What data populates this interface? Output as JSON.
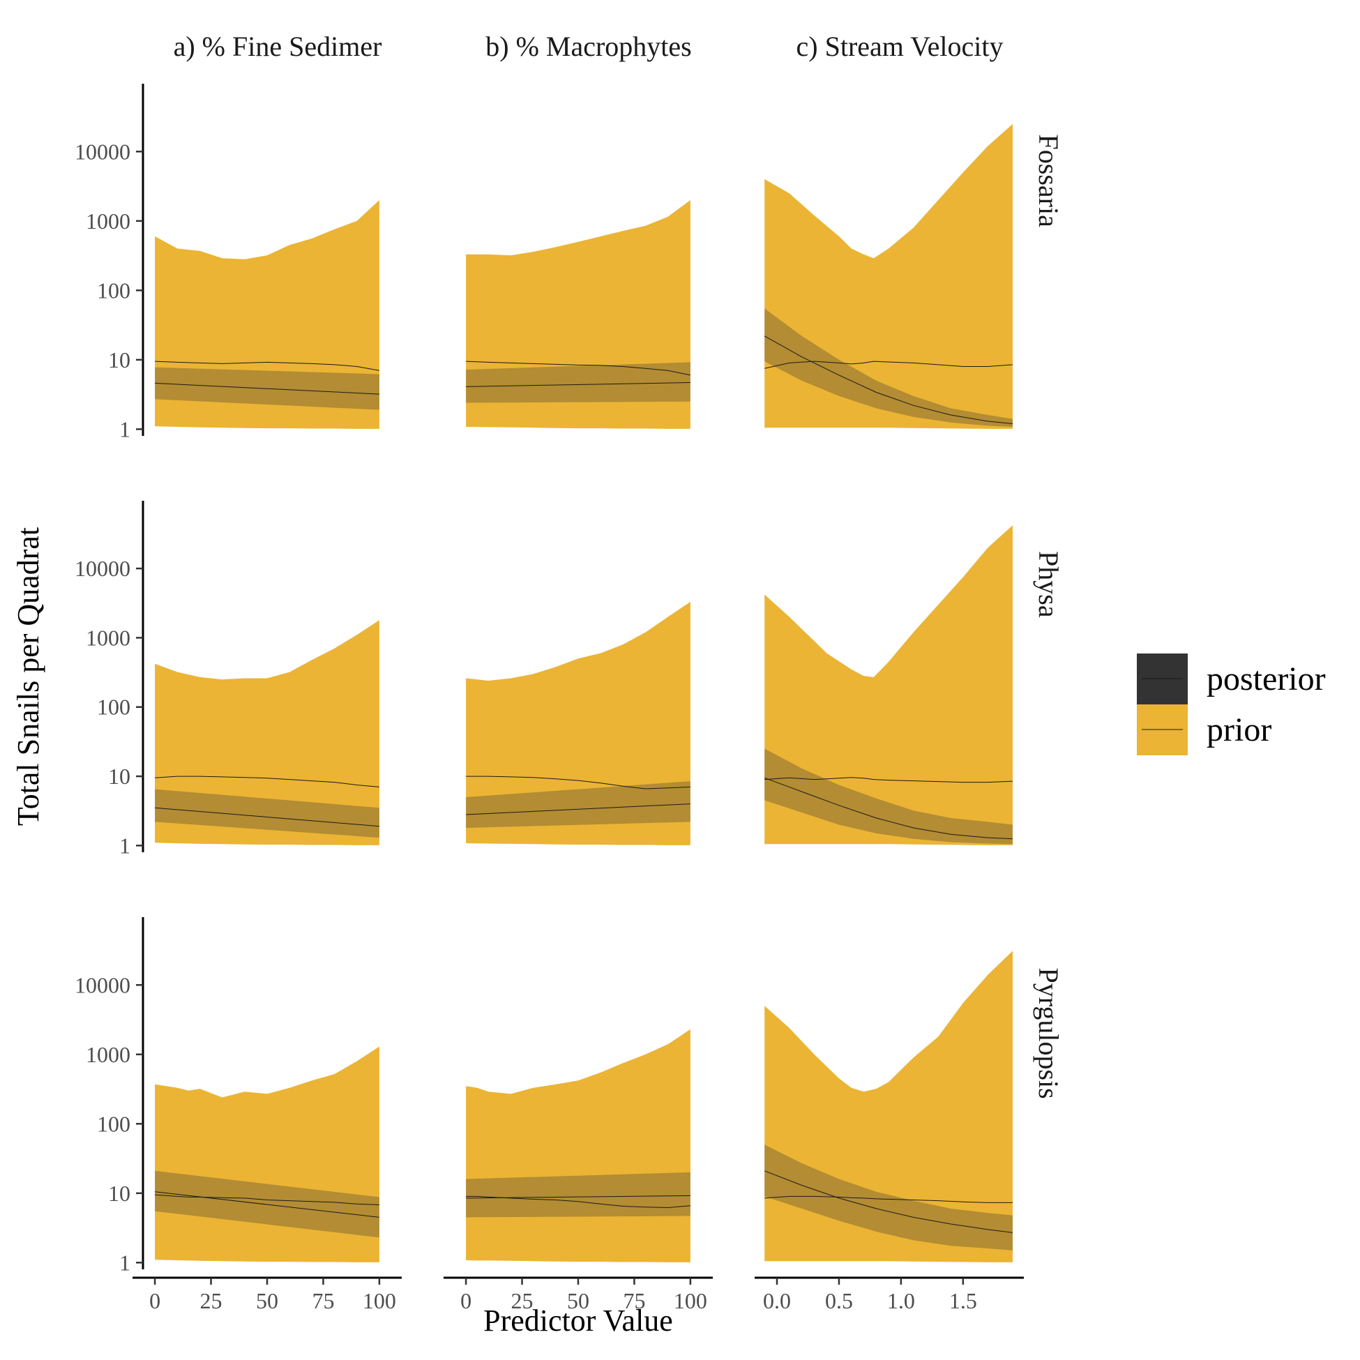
{
  "chart_data": {
    "type": "area",
    "y_scale": "log10",
    "xlabel": "Predictor Value",
    "ylabel": "Total Snails per Quadrat",
    "ylim": [
      1,
      50000
    ],
    "y_ticks": [
      1,
      10,
      100,
      1000,
      10000
    ],
    "y_tick_labels": [
      "1",
      "10",
      "100",
      "1000",
      "10000"
    ],
    "grid": false,
    "legend_position": "right",
    "columns": [
      {
        "label": "a) % Fine Sedimer",
        "xlim": [
          -5,
          105
        ],
        "x_ticks": [
          0,
          25,
          50,
          75,
          100
        ],
        "x_tick_labels": [
          "0",
          "25",
          "50",
          "75",
          "100"
        ]
      },
      {
        "label": "b) % Macrophytes",
        "xlim": [
          -5,
          105
        ],
        "x_ticks": [
          0,
          25,
          50,
          75,
          100
        ],
        "x_tick_labels": [
          "0",
          "25",
          "50",
          "75",
          "100"
        ]
      },
      {
        "label": "c) Stream Velocity",
        "xlim": [
          -0.09,
          1.9
        ],
        "x_ticks": [
          0.0,
          0.5,
          1.0,
          1.5
        ],
        "x_tick_labels": [
          "0.0",
          "0.5",
          "1.0",
          "1.5"
        ]
      }
    ],
    "rows": [
      "Fossaria",
      "Physa",
      "Pyrgulopsis"
    ],
    "series": [
      {
        "name": "posterior",
        "fill": "#333333",
        "alpha": 0.3
      },
      {
        "name": "prior",
        "fill": "#EBB434"
      }
    ],
    "panels": [
      {
        "row": "Fossaria",
        "col": 0,
        "prior": {
          "x": [
            0,
            10,
            20,
            30,
            40,
            50,
            60,
            70,
            80,
            90,
            100
          ],
          "upper": [
            600,
            400,
            370,
            290,
            280,
            320,
            450,
            560,
            760,
            1000,
            2000
          ],
          "lower": [
            1.1,
            1.08,
            1.06,
            1.05,
            1.04,
            1.03,
            1.03,
            1.02,
            1.02,
            1.01,
            1.01
          ],
          "median": [
            9.5,
            9.2,
            9.0,
            8.8,
            9.0,
            9.2,
            9.0,
            8.8,
            8.5,
            8.0,
            7.0
          ]
        },
        "posterior": {
          "x": [
            0,
            100
          ],
          "upper": [
            7.8,
            6.2
          ],
          "lower": [
            2.7,
            1.9
          ],
          "median": [
            4.6,
            3.2
          ]
        }
      },
      {
        "row": "Fossaria",
        "col": 1,
        "prior": {
          "x": [
            0,
            10,
            20,
            30,
            40,
            50,
            60,
            70,
            80,
            90,
            100
          ],
          "upper": [
            330,
            330,
            320,
            360,
            420,
            500,
            600,
            720,
            850,
            1150,
            2000
          ],
          "lower": [
            1.08,
            1.07,
            1.06,
            1.05,
            1.04,
            1.03,
            1.03,
            1.02,
            1.02,
            1.01,
            1.01
          ],
          "median": [
            9.5,
            9.2,
            9.0,
            8.8,
            8.6,
            8.4,
            8.3,
            8.0,
            7.5,
            7.0,
            6.0
          ]
        },
        "posterior": {
          "x": [
            0,
            100
          ],
          "upper": [
            7.2,
            9.2
          ],
          "lower": [
            2.4,
            2.5
          ],
          "median": [
            4.1,
            4.7
          ]
        }
      },
      {
        "row": "Fossaria",
        "col": 2,
        "prior": {
          "x": [
            -0.1,
            0.1,
            0.3,
            0.5,
            0.6,
            0.7,
            0.78,
            0.9,
            1.1,
            1.3,
            1.5,
            1.7,
            1.9
          ],
          "upper": [
            4000,
            2500,
            1200,
            600,
            400,
            330,
            290,
            400,
            800,
            2000,
            5000,
            12000,
            25000
          ],
          "lower": [
            1.05,
            1.05,
            1.05,
            1.05,
            1.05,
            1.05,
            1.05,
            1.05,
            1.04,
            1.03,
            1.02,
            1.01,
            1.01
          ],
          "median": [
            7.5,
            9.0,
            9.5,
            9.0,
            8.7,
            9.0,
            9.5,
            9.3,
            9.0,
            8.5,
            8.0,
            8.0,
            8.5
          ]
        },
        "posterior": {
          "x": [
            -0.1,
            0.2,
            0.5,
            0.8,
            1.1,
            1.4,
            1.7,
            1.9
          ],
          "upper": [
            55,
            22,
            10,
            5.0,
            3.0,
            2.0,
            1.6,
            1.4
          ],
          "lower": [
            9.5,
            5.0,
            3.0,
            2.0,
            1.5,
            1.25,
            1.12,
            1.08
          ],
          "median": [
            22,
            11,
            6.0,
            3.4,
            2.2,
            1.6,
            1.3,
            1.2
          ]
        }
      },
      {
        "row": "Physa",
        "col": 0,
        "prior": {
          "x": [
            0,
            10,
            20,
            30,
            40,
            50,
            60,
            70,
            80,
            90,
            100
          ],
          "upper": [
            420,
            320,
            270,
            250,
            260,
            260,
            320,
            480,
            700,
            1100,
            1800
          ],
          "lower": [
            1.1,
            1.08,
            1.06,
            1.05,
            1.04,
            1.03,
            1.03,
            1.02,
            1.02,
            1.01,
            1.01
          ],
          "median": [
            9.5,
            10.0,
            10.0,
            9.8,
            9.6,
            9.4,
            9.0,
            8.6,
            8.2,
            7.5,
            7.0
          ]
        },
        "posterior": {
          "x": [
            0,
            100
          ],
          "upper": [
            6.5,
            3.5
          ],
          "lower": [
            2.2,
            1.3
          ],
          "median": [
            3.5,
            1.9
          ]
        }
      },
      {
        "row": "Physa",
        "col": 1,
        "prior": {
          "x": [
            0,
            10,
            20,
            30,
            40,
            50,
            60,
            70,
            80,
            90,
            100
          ],
          "upper": [
            260,
            240,
            260,
            300,
            380,
            500,
            600,
            800,
            1200,
            2000,
            3300
          ],
          "lower": [
            1.08,
            1.07,
            1.06,
            1.05,
            1.04,
            1.03,
            1.03,
            1.02,
            1.02,
            1.01,
            1.01
          ],
          "median": [
            10.0,
            10.0,
            9.8,
            9.6,
            9.2,
            8.7,
            8.0,
            7.2,
            6.6,
            6.8,
            7.0
          ]
        },
        "posterior": {
          "x": [
            0,
            100
          ],
          "upper": [
            5.0,
            8.5
          ],
          "lower": [
            1.8,
            2.2
          ],
          "median": [
            2.8,
            4.0
          ]
        }
      },
      {
        "row": "Physa",
        "col": 2,
        "prior": {
          "x": [
            -0.1,
            0.1,
            0.3,
            0.4,
            0.6,
            0.7,
            0.78,
            0.9,
            1.1,
            1.3,
            1.5,
            1.7,
            1.9
          ],
          "upper": [
            4200,
            2000,
            900,
            600,
            350,
            280,
            270,
            450,
            1200,
            3000,
            7500,
            20000,
            42000
          ],
          "lower": [
            1.05,
            1.05,
            1.05,
            1.05,
            1.05,
            1.05,
            1.05,
            1.05,
            1.04,
            1.03,
            1.02,
            1.01,
            1.01
          ],
          "median": [
            9.0,
            9.5,
            9.0,
            9.2,
            9.6,
            9.4,
            9.0,
            8.8,
            8.6,
            8.4,
            8.2,
            8.2,
            8.5
          ]
        },
        "posterior": {
          "x": [
            -0.1,
            0.2,
            0.5,
            0.8,
            1.1,
            1.4,
            1.7,
            1.9
          ],
          "upper": [
            25,
            13,
            7.5,
            4.8,
            3.2,
            2.5,
            2.2,
            2.0
          ],
          "lower": [
            4.5,
            3.0,
            2.0,
            1.5,
            1.25,
            1.12,
            1.07,
            1.05
          ],
          "median": [
            9.5,
            6.0,
            3.8,
            2.5,
            1.8,
            1.45,
            1.3,
            1.25
          ]
        }
      },
      {
        "row": "Pyrgulopsis",
        "col": 0,
        "prior": {
          "x": [
            0,
            10,
            15,
            20,
            30,
            40,
            50,
            60,
            70,
            80,
            90,
            100
          ],
          "upper": [
            370,
            330,
            300,
            320,
            240,
            290,
            270,
            330,
            420,
            520,
            800,
            1300
          ],
          "lower": [
            1.1,
            1.08,
            1.07,
            1.06,
            1.05,
            1.04,
            1.03,
            1.03,
            1.02,
            1.02,
            1.01,
            1.01
          ],
          "median": [
            9.5,
            9.0,
            8.8,
            8.8,
            8.6,
            8.5,
            8.0,
            7.8,
            7.6,
            7.4,
            7.0,
            6.8
          ]
        },
        "posterior": {
          "x": [
            0,
            100
          ],
          "upper": [
            21,
            8.8
          ],
          "lower": [
            5.5,
            2.3
          ],
          "median": [
            10.5,
            4.5
          ]
        }
      },
      {
        "row": "Pyrgulopsis",
        "col": 1,
        "prior": {
          "x": [
            0,
            5,
            10,
            20,
            30,
            40,
            50,
            60,
            70,
            80,
            90,
            100
          ],
          "upper": [
            350,
            330,
            290,
            270,
            330,
            370,
            420,
            550,
            750,
            1000,
            1400,
            2300
          ],
          "lower": [
            1.08,
            1.07,
            1.07,
            1.06,
            1.05,
            1.04,
            1.03,
            1.03,
            1.02,
            1.02,
            1.01,
            1.01
          ],
          "median": [
            9.0,
            9.0,
            8.8,
            8.5,
            8.2,
            8.0,
            7.6,
            7.0,
            6.5,
            6.3,
            6.2,
            6.6
          ]
        },
        "posterior": {
          "x": [
            0,
            100
          ],
          "upper": [
            16,
            20
          ],
          "lower": [
            4.5,
            4.7
          ],
          "median": [
            8.5,
            9.2
          ]
        }
      },
      {
        "row": "Pyrgulopsis",
        "col": 2,
        "prior": {
          "x": [
            -0.1,
            0.1,
            0.3,
            0.5,
            0.6,
            0.7,
            0.8,
            0.9,
            1.1,
            1.3,
            1.5,
            1.7,
            1.9
          ],
          "upper": [
            5000,
            2400,
            1000,
            450,
            330,
            290,
            320,
            400,
            900,
            1800,
            5500,
            14000,
            31000
          ],
          "lower": [
            1.05,
            1.05,
            1.05,
            1.05,
            1.05,
            1.05,
            1.05,
            1.05,
            1.04,
            1.03,
            1.02,
            1.01,
            1.01
          ],
          "median": [
            8.5,
            9.0,
            9.0,
            8.8,
            8.6,
            8.5,
            8.3,
            8.2,
            8.0,
            7.8,
            7.5,
            7.3,
            7.3
          ]
        },
        "posterior": {
          "x": [
            -0.1,
            0.2,
            0.5,
            0.8,
            1.1,
            1.4,
            1.7,
            1.9
          ],
          "upper": [
            50,
            27,
            16,
            10.5,
            7.8,
            6.0,
            5.2,
            4.8
          ],
          "lower": [
            9.0,
            6.0,
            4.0,
            2.8,
            2.1,
            1.75,
            1.6,
            1.5
          ],
          "median": [
            21,
            13,
            8.5,
            6.0,
            4.5,
            3.6,
            3.0,
            2.7
          ]
        }
      }
    ]
  }
}
